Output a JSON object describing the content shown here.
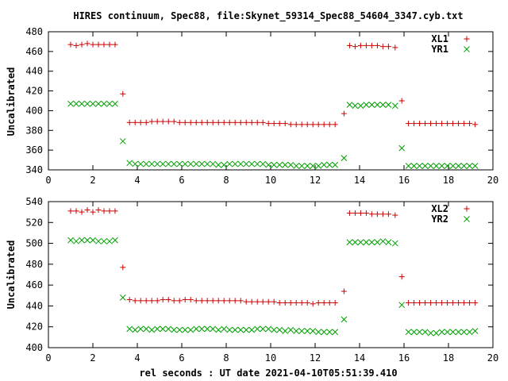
{
  "chart_data": [
    {
      "type": "scatter",
      "title": "HIRES continuum, Spec88, file:Skynet_59314_Spec88_54604_3347.cyb.txt",
      "xlabel": "",
      "ylabel": "Uncalibrated",
      "xlim": [
        0,
        20
      ],
      "ylim": [
        340,
        480
      ],
      "xticks": [
        0,
        2,
        4,
        6,
        8,
        10,
        12,
        14,
        16,
        18,
        20
      ],
      "yticks": [
        340,
        360,
        380,
        400,
        420,
        440,
        460,
        480
      ],
      "legend_position": "top-right",
      "series": [
        {
          "name": "XL1",
          "marker": "plus",
          "color": "#cc0000",
          "x": [
            1.0,
            1.25,
            1.5,
            1.75,
            2.0,
            2.25,
            2.5,
            2.75,
            3.0,
            3.35,
            3.65,
            3.9,
            4.15,
            4.4,
            4.65,
            4.9,
            5.15,
            5.4,
            5.65,
            5.9,
            6.15,
            6.4,
            6.65,
            6.9,
            7.15,
            7.4,
            7.65,
            7.9,
            8.15,
            8.4,
            8.65,
            8.9,
            9.15,
            9.4,
            9.65,
            9.9,
            10.15,
            10.4,
            10.65,
            10.9,
            11.15,
            11.4,
            11.65,
            11.9,
            12.15,
            12.4,
            12.65,
            12.9,
            13.3,
            13.55,
            13.8,
            14.05,
            14.3,
            14.55,
            14.8,
            15.05,
            15.3,
            15.6,
            15.9,
            16.2,
            16.45,
            16.7,
            16.95,
            17.2,
            17.45,
            17.7,
            17.95,
            18.2,
            18.45,
            18.7,
            18.95,
            19.2
          ],
          "y": [
            467,
            466,
            467,
            468,
            467,
            467,
            467,
            467,
            467,
            417,
            388,
            388,
            388,
            388,
            389,
            389,
            389,
            389,
            389,
            388,
            388,
            388,
            388,
            388,
            388,
            388,
            388,
            388,
            388,
            388,
            388,
            388,
            388,
            388,
            388,
            387,
            387,
            387,
            387,
            386,
            386,
            386,
            386,
            386,
            386,
            386,
            386,
            386,
            397,
            466,
            465,
            466,
            466,
            466,
            466,
            465,
            465,
            464,
            410,
            387,
            387,
            387,
            387,
            387,
            387,
            387,
            387,
            387,
            387,
            387,
            387,
            386
          ]
        },
        {
          "name": "YR1",
          "marker": "cross",
          "color": "#00a000",
          "x": [
            1.0,
            1.25,
            1.5,
            1.75,
            2.0,
            2.25,
            2.5,
            2.75,
            3.0,
            3.35,
            3.65,
            3.9,
            4.15,
            4.4,
            4.65,
            4.9,
            5.15,
            5.4,
            5.65,
            5.9,
            6.15,
            6.4,
            6.65,
            6.9,
            7.15,
            7.4,
            7.65,
            7.9,
            8.15,
            8.4,
            8.65,
            8.9,
            9.15,
            9.4,
            9.65,
            9.9,
            10.15,
            10.4,
            10.65,
            10.9,
            11.15,
            11.4,
            11.65,
            11.9,
            12.15,
            12.4,
            12.65,
            12.9,
            13.3,
            13.55,
            13.8,
            14.05,
            14.3,
            14.55,
            14.8,
            15.05,
            15.3,
            15.6,
            15.9,
            16.2,
            16.45,
            16.7,
            16.95,
            17.2,
            17.45,
            17.7,
            17.95,
            18.2,
            18.45,
            18.7,
            18.95,
            19.2
          ],
          "y": [
            407,
            407,
            407,
            407,
            407,
            407,
            407,
            407,
            407,
            369,
            347,
            346,
            346,
            346,
            346,
            346,
            346,
            346,
            346,
            346,
            346,
            346,
            346,
            346,
            346,
            346,
            345,
            345,
            346,
            346,
            346,
            346,
            346,
            346,
            346,
            345,
            345,
            345,
            345,
            345,
            344,
            344,
            344,
            344,
            344,
            345,
            345,
            345,
            352,
            406,
            405,
            405,
            406,
            406,
            406,
            406,
            406,
            405,
            362,
            344,
            344,
            344,
            344,
            344,
            344,
            344,
            344,
            344,
            344,
            344,
            344,
            344
          ]
        }
      ]
    },
    {
      "type": "scatter",
      "title": "",
      "xlabel": "rel seconds : UT date 2021-04-10T05:51:39.410",
      "ylabel": "Uncalibrated",
      "xlim": [
        0,
        20
      ],
      "ylim": [
        400,
        540
      ],
      "xticks": [
        0,
        2,
        4,
        6,
        8,
        10,
        12,
        14,
        16,
        18,
        20
      ],
      "yticks": [
        400,
        420,
        440,
        460,
        480,
        500,
        520,
        540
      ],
      "legend_position": "top-right",
      "series": [
        {
          "name": "XL2",
          "marker": "plus",
          "color": "#cc0000",
          "x": [
            1.0,
            1.25,
            1.5,
            1.75,
            2.0,
            2.25,
            2.5,
            2.75,
            3.0,
            3.35,
            3.65,
            3.9,
            4.15,
            4.4,
            4.65,
            4.9,
            5.15,
            5.4,
            5.65,
            5.9,
            6.15,
            6.4,
            6.65,
            6.9,
            7.15,
            7.4,
            7.65,
            7.9,
            8.15,
            8.4,
            8.65,
            8.9,
            9.15,
            9.4,
            9.65,
            9.9,
            10.15,
            10.4,
            10.65,
            10.9,
            11.15,
            11.4,
            11.65,
            11.9,
            12.15,
            12.4,
            12.65,
            12.9,
            13.3,
            13.55,
            13.8,
            14.05,
            14.3,
            14.55,
            14.8,
            15.05,
            15.3,
            15.6,
            15.9,
            16.2,
            16.45,
            16.7,
            16.95,
            17.2,
            17.45,
            17.7,
            17.95,
            18.2,
            18.45,
            18.7,
            18.95,
            19.2
          ],
          "y": [
            531,
            531,
            530,
            532,
            530,
            532,
            531,
            531,
            531,
            477,
            446,
            445,
            445,
            445,
            445,
            445,
            446,
            446,
            445,
            445,
            446,
            446,
            445,
            445,
            445,
            445,
            445,
            445,
            445,
            445,
            445,
            444,
            444,
            444,
            444,
            444,
            444,
            443,
            443,
            443,
            443,
            443,
            443,
            442,
            443,
            443,
            443,
            443,
            454,
            529,
            529,
            529,
            529,
            528,
            528,
            528,
            528,
            527,
            468,
            443,
            443,
            443,
            443,
            443,
            443,
            443,
            443,
            443,
            443,
            443,
            443,
            443
          ]
        },
        {
          "name": "YR2",
          "marker": "cross",
          "color": "#00a000",
          "x": [
            1.0,
            1.25,
            1.5,
            1.75,
            2.0,
            2.25,
            2.5,
            2.75,
            3.0,
            3.35,
            3.65,
            3.9,
            4.15,
            4.4,
            4.65,
            4.9,
            5.15,
            5.4,
            5.65,
            5.9,
            6.15,
            6.4,
            6.65,
            6.9,
            7.15,
            7.4,
            7.65,
            7.9,
            8.15,
            8.4,
            8.65,
            8.9,
            9.15,
            9.4,
            9.65,
            9.9,
            10.15,
            10.4,
            10.65,
            10.9,
            11.15,
            11.4,
            11.65,
            11.9,
            12.15,
            12.4,
            12.65,
            12.9,
            13.3,
            13.55,
            13.8,
            14.05,
            14.3,
            14.55,
            14.8,
            15.05,
            15.3,
            15.6,
            15.9,
            16.2,
            16.45,
            16.7,
            16.95,
            17.2,
            17.45,
            17.7,
            17.95,
            18.2,
            18.45,
            18.7,
            18.95,
            19.2
          ],
          "y": [
            503,
            502,
            503,
            503,
            503,
            502,
            502,
            502,
            503,
            448,
            418,
            417,
            418,
            418,
            417,
            418,
            418,
            418,
            417,
            417,
            417,
            417,
            418,
            418,
            418,
            418,
            417,
            418,
            417,
            417,
            417,
            417,
            417,
            418,
            418,
            418,
            417,
            417,
            416,
            417,
            416,
            416,
            416,
            416,
            415,
            415,
            415,
            415,
            427,
            501,
            501,
            501,
            501,
            501,
            501,
            502,
            501,
            500,
            441,
            415,
            415,
            415,
            415,
            414,
            414,
            415,
            415,
            415,
            415,
            415,
            415,
            416
          ]
        }
      ]
    }
  ]
}
